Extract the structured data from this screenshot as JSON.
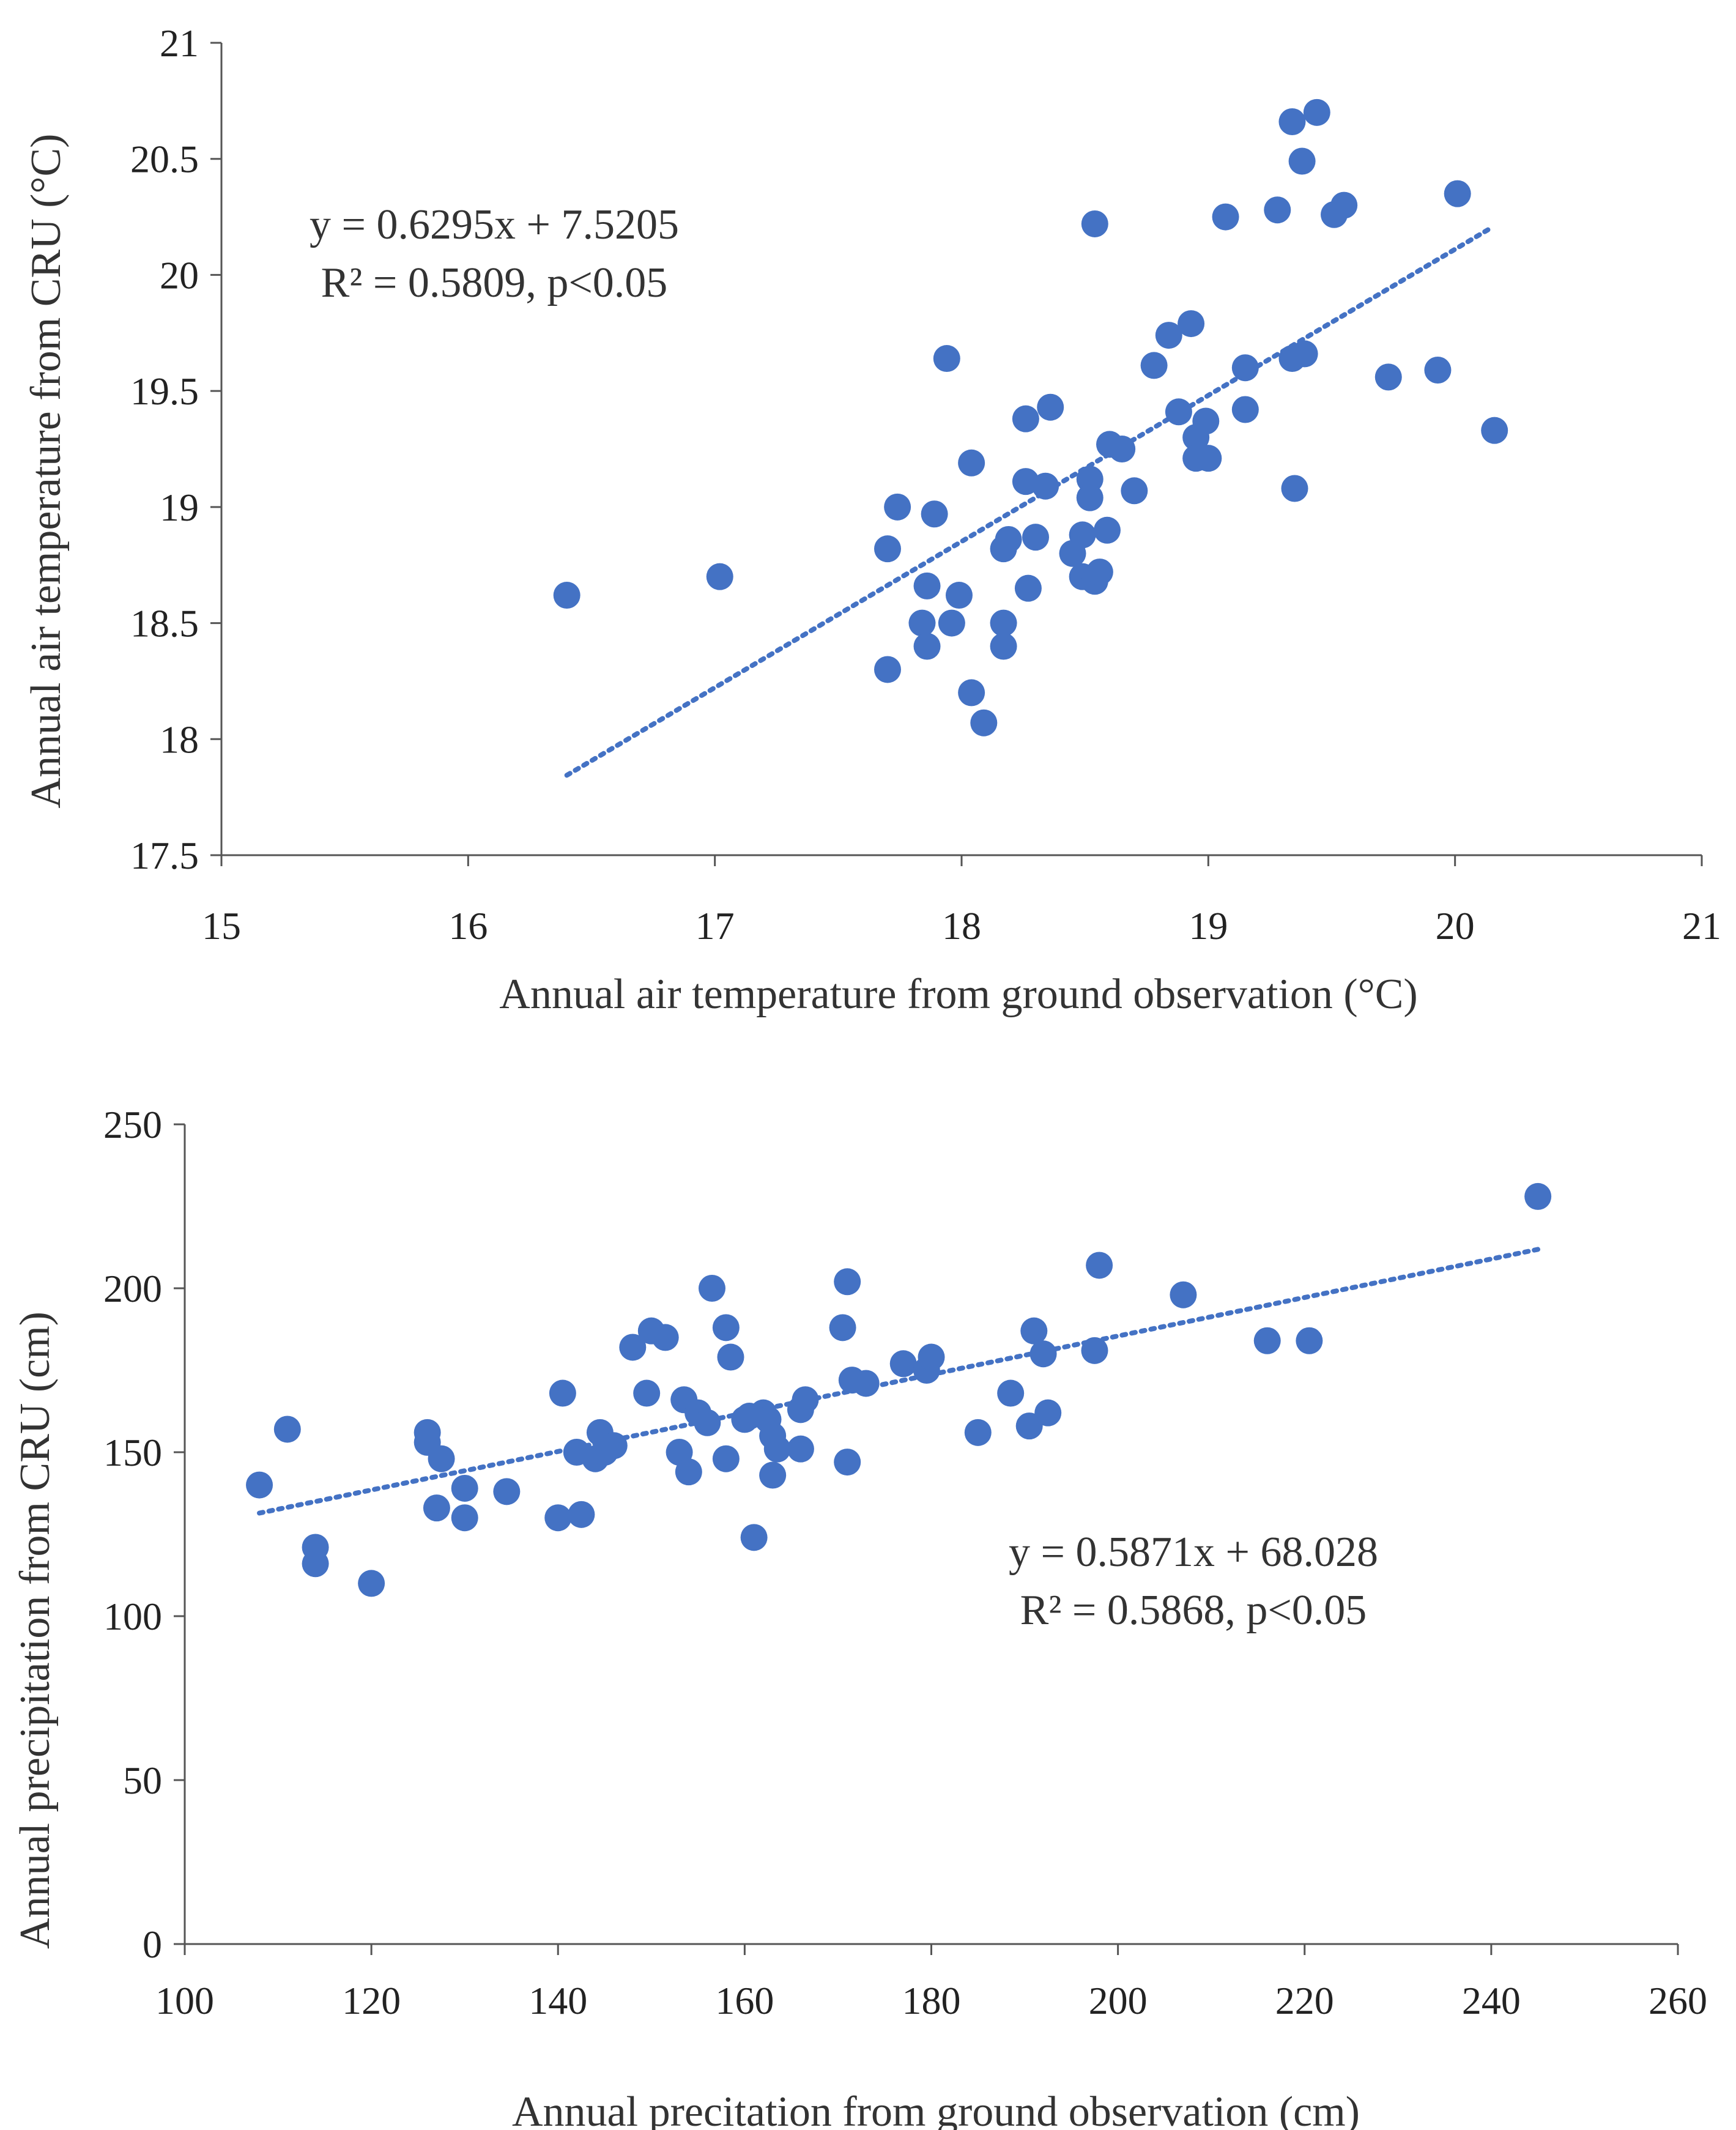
{
  "chart_data": [
    {
      "type": "scatter",
      "title": "",
      "xlabel": "Annual  air temperature from ground observation (°C)",
      "ylabel": "Annual  air temperature from CRU (°C)",
      "xlim": [
        15,
        21
      ],
      "ylim": [
        17.5,
        21
      ],
      "xticks": [
        "15",
        "16",
        "17",
        "18",
        "19",
        "20",
        "21"
      ],
      "yticks": [
        "17.5",
        "18",
        "18.5",
        "19",
        "19.5",
        "20",
        "20.5",
        "21"
      ],
      "equation": "y = 0.6295x + 7.5205",
      "r2_text": "R² = 0.5809, p<0.05",
      "trendline": {
        "slope": 0.6295,
        "intercept": 7.5205,
        "x_range": [
          16.4,
          20.15
        ]
      },
      "color": "#4472C4",
      "points": [
        {
          "x": 16.4,
          "y": 18.62
        },
        {
          "x": 17.02,
          "y": 18.7
        },
        {
          "x": 17.7,
          "y": 18.82
        },
        {
          "x": 17.7,
          "y": 18.3
        },
        {
          "x": 17.74,
          "y": 19.0
        },
        {
          "x": 17.84,
          "y": 18.5
        },
        {
          "x": 17.86,
          "y": 18.66
        },
        {
          "x": 17.86,
          "y": 18.4
        },
        {
          "x": 17.89,
          "y": 18.97
        },
        {
          "x": 17.94,
          "y": 19.64
        },
        {
          "x": 17.96,
          "y": 18.5
        },
        {
          "x": 17.99,
          "y": 18.62
        },
        {
          "x": 18.04,
          "y": 19.19
        },
        {
          "x": 18.04,
          "y": 18.2
        },
        {
          "x": 18.09,
          "y": 18.07
        },
        {
          "x": 18.17,
          "y": 18.5
        },
        {
          "x": 18.17,
          "y": 18.4
        },
        {
          "x": 18.17,
          "y": 18.82
        },
        {
          "x": 18.19,
          "y": 18.86
        },
        {
          "x": 18.26,
          "y": 19.38
        },
        {
          "x": 18.26,
          "y": 19.11
        },
        {
          "x": 18.27,
          "y": 18.65
        },
        {
          "x": 18.3,
          "y": 18.87
        },
        {
          "x": 18.34,
          "y": 19.09
        },
        {
          "x": 18.36,
          "y": 19.43
        },
        {
          "x": 18.45,
          "y": 18.8
        },
        {
          "x": 18.49,
          "y": 18.88
        },
        {
          "x": 18.49,
          "y": 18.7
        },
        {
          "x": 18.52,
          "y": 19.12
        },
        {
          "x": 18.52,
          "y": 19.04
        },
        {
          "x": 18.54,
          "y": 18.68
        },
        {
          "x": 18.54,
          "y": 20.22
        },
        {
          "x": 18.56,
          "y": 18.72
        },
        {
          "x": 18.59,
          "y": 18.9
        },
        {
          "x": 18.6,
          "y": 19.27
        },
        {
          "x": 18.65,
          "y": 19.25
        },
        {
          "x": 18.7,
          "y": 19.07
        },
        {
          "x": 18.78,
          "y": 19.61
        },
        {
          "x": 18.84,
          "y": 19.74
        },
        {
          "x": 18.88,
          "y": 19.41
        },
        {
          "x": 18.93,
          "y": 19.79
        },
        {
          "x": 18.95,
          "y": 19.3
        },
        {
          "x": 18.95,
          "y": 19.21
        },
        {
          "x": 18.99,
          "y": 19.37
        },
        {
          "x": 19.0,
          "y": 19.21
        },
        {
          "x": 19.07,
          "y": 20.25
        },
        {
          "x": 19.15,
          "y": 19.6
        },
        {
          "x": 19.15,
          "y": 19.42
        },
        {
          "x": 19.28,
          "y": 20.28
        },
        {
          "x": 19.34,
          "y": 19.64
        },
        {
          "x": 19.34,
          "y": 20.66
        },
        {
          "x": 19.35,
          "y": 19.08
        },
        {
          "x": 19.38,
          "y": 20.49
        },
        {
          "x": 19.39,
          "y": 19.66
        },
        {
          "x": 19.44,
          "y": 20.7
        },
        {
          "x": 19.51,
          "y": 20.26
        },
        {
          "x": 19.55,
          "y": 20.3
        },
        {
          "x": 19.73,
          "y": 19.56
        },
        {
          "x": 19.93,
          "y": 19.59
        },
        {
          "x": 20.01,
          "y": 20.35
        },
        {
          "x": 20.16,
          "y": 19.33
        }
      ]
    },
    {
      "type": "scatter",
      "title": "",
      "xlabel": "Annual  precitation from ground observation (cm)",
      "ylabel": "Annual  precipitation from CRU (cm)",
      "xlim": [
        100,
        260
      ],
      "ylim": [
        0,
        250
      ],
      "xticks": [
        "100",
        "120",
        "140",
        "160",
        "180",
        "200",
        "220",
        "240",
        "260"
      ],
      "yticks": [
        "0",
        "50",
        "100",
        "150",
        "200",
        "250"
      ],
      "equation": "y = 0.5871x  + 68.028",
      "r2_text": "R² = 0.5868,  p<0.05",
      "trendline": {
        "slope": 0.5871,
        "intercept": 68.028,
        "x_range": [
          108,
          245
        ]
      },
      "color": "#4472C4",
      "points": [
        {
          "x": 108,
          "y": 140
        },
        {
          "x": 111,
          "y": 157
        },
        {
          "x": 114,
          "y": 121
        },
        {
          "x": 114,
          "y": 116
        },
        {
          "x": 120,
          "y": 110
        },
        {
          "x": 126,
          "y": 156
        },
        {
          "x": 126,
          "y": 153
        },
        {
          "x": 127,
          "y": 133
        },
        {
          "x": 127.5,
          "y": 148
        },
        {
          "x": 130,
          "y": 139
        },
        {
          "x": 130,
          "y": 130
        },
        {
          "x": 134.5,
          "y": 138
        },
        {
          "x": 140,
          "y": 130
        },
        {
          "x": 140.5,
          "y": 168
        },
        {
          "x": 142,
          "y": 150
        },
        {
          "x": 142.5,
          "y": 131
        },
        {
          "x": 144,
          "y": 148
        },
        {
          "x": 144.5,
          "y": 156
        },
        {
          "x": 145,
          "y": 150
        },
        {
          "x": 146,
          "y": 152
        },
        {
          "x": 148,
          "y": 182
        },
        {
          "x": 149.5,
          "y": 168
        },
        {
          "x": 150,
          "y": 187
        },
        {
          "x": 151.5,
          "y": 185
        },
        {
          "x": 153,
          "y": 150
        },
        {
          "x": 153.5,
          "y": 166
        },
        {
          "x": 154,
          "y": 144
        },
        {
          "x": 155,
          "y": 162
        },
        {
          "x": 156,
          "y": 159
        },
        {
          "x": 156.5,
          "y": 200
        },
        {
          "x": 158,
          "y": 188
        },
        {
          "x": 158,
          "y": 148
        },
        {
          "x": 158.5,
          "y": 179
        },
        {
          "x": 160,
          "y": 160
        },
        {
          "x": 160.5,
          "y": 161
        },
        {
          "x": 161,
          "y": 124
        },
        {
          "x": 162,
          "y": 162
        },
        {
          "x": 162.5,
          "y": 160
        },
        {
          "x": 163,
          "y": 155
        },
        {
          "x": 163,
          "y": 143
        },
        {
          "x": 163.5,
          "y": 151
        },
        {
          "x": 166,
          "y": 151
        },
        {
          "x": 166,
          "y": 163
        },
        {
          "x": 166.5,
          "y": 166
        },
        {
          "x": 170.5,
          "y": 188
        },
        {
          "x": 171,
          "y": 147
        },
        {
          "x": 171,
          "y": 202
        },
        {
          "x": 171.5,
          "y": 172
        },
        {
          "x": 173,
          "y": 171
        },
        {
          "x": 177,
          "y": 177
        },
        {
          "x": 179.5,
          "y": 175
        },
        {
          "x": 180,
          "y": 179
        },
        {
          "x": 185,
          "y": 156
        },
        {
          "x": 188.5,
          "y": 168
        },
        {
          "x": 190.5,
          "y": 158
        },
        {
          "x": 191,
          "y": 187
        },
        {
          "x": 192,
          "y": 180
        },
        {
          "x": 192.5,
          "y": 162
        },
        {
          "x": 197.5,
          "y": 181
        },
        {
          "x": 198,
          "y": 207
        },
        {
          "x": 207,
          "y": 198
        },
        {
          "x": 216,
          "y": 184
        },
        {
          "x": 220.5,
          "y": 184
        },
        {
          "x": 245,
          "y": 228
        }
      ]
    }
  ]
}
